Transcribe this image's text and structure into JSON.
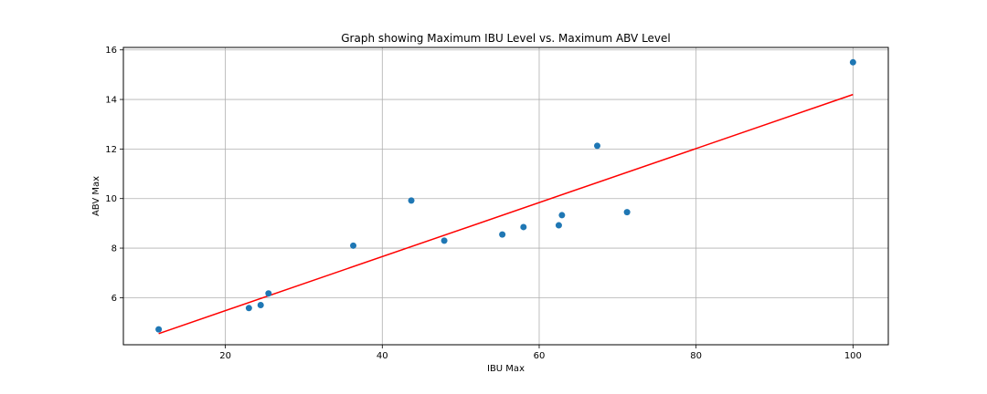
{
  "chart_data": {
    "type": "scatter",
    "title": "Graph showing Maximum IBU Level vs. Maximum ABV Level",
    "xlabel": "IBU Max",
    "ylabel": "ABV Max",
    "xlim": [
      7,
      104.5
    ],
    "ylim": [
      4.1,
      16.1
    ],
    "xticks": [
      20,
      40,
      60,
      80,
      100
    ],
    "yticks": [
      6,
      8,
      10,
      12,
      14,
      16
    ],
    "grid": true,
    "points": [
      {
        "x": 11.5,
        "y": 4.72
      },
      {
        "x": 23.0,
        "y": 5.58
      },
      {
        "x": 24.5,
        "y": 5.7
      },
      {
        "x": 25.5,
        "y": 6.17
      },
      {
        "x": 36.3,
        "y": 8.1
      },
      {
        "x": 43.7,
        "y": 9.92
      },
      {
        "x": 47.9,
        "y": 8.3
      },
      {
        "x": 55.3,
        "y": 8.55
      },
      {
        "x": 58.0,
        "y": 8.85
      },
      {
        "x": 62.5,
        "y": 8.92
      },
      {
        "x": 62.9,
        "y": 9.33
      },
      {
        "x": 67.4,
        "y": 12.13
      },
      {
        "x": 71.2,
        "y": 9.45
      },
      {
        "x": 100.0,
        "y": 15.5
      }
    ],
    "fit_line": {
      "x": [
        11.5,
        100.0
      ],
      "y": [
        4.55,
        14.2
      ]
    },
    "colors": {
      "points": "#1f77b4",
      "fit_line": "#ff0000",
      "grid": "#b0b0b0"
    }
  }
}
